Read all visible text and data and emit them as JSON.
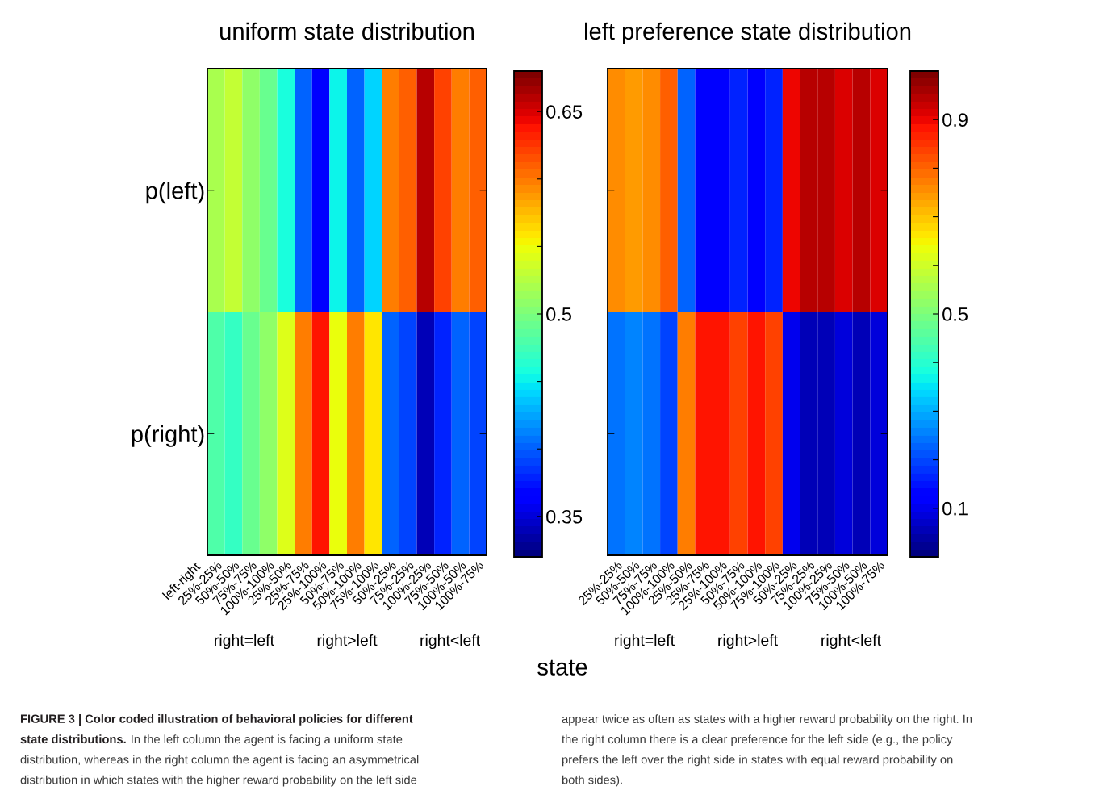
{
  "chart_data": [
    {
      "type": "heatmap",
      "title": "uniform state distribution",
      "categories": [
        "25%-25%",
        "50%-50%",
        "75%-75%",
        "100%-100%",
        "25%-50%",
        "25%-75%",
        "25%-100%",
        "50%-75%",
        "50%-100%",
        "75%-100%",
        "50%-25%",
        "75%-25%",
        "100%-25%",
        "75%-50%",
        "100%-50%",
        "100%-75%"
      ],
      "y_categories": [
        "p(left)",
        "p(right)"
      ],
      "cells": [
        [
          0.52,
          0.53,
          0.51,
          0.49,
          0.46,
          0.4,
          0.36,
          0.45,
          0.4,
          0.44,
          0.6,
          0.61,
          0.66,
          0.62,
          0.6,
          0.61
        ],
        [
          0.48,
          0.47,
          0.49,
          0.51,
          0.54,
          0.6,
          0.64,
          0.55,
          0.6,
          0.56,
          0.4,
          0.39,
          0.34,
          0.38,
          0.4,
          0.39
        ]
      ],
      "clim": [
        0.32,
        0.68
      ],
      "cticks": [
        0.35,
        {
          "value": 0.4,
          "label": null
        },
        {
          "value": 0.45,
          "label": null
        },
        0.5,
        {
          "value": 0.55,
          "label": null
        },
        {
          "value": 0.6,
          "label": null
        },
        0.65
      ],
      "annotations": [
        "left-right",
        "right=left",
        "right>left",
        "right<left",
        "state",
        "FIGURE 3 | Color coded illustration of behavioral policies for different\nstate distributions.",
        "In the left column the agent is facing a uniform state\ndistribution, whereas in the right column the agent is facing an asymmetrical\ndistribution in which states with the higher reward probability on the left side",
        "appear twice as often as states with a higher reward probability on the right. In\nthe right column there is a clear preference for the left side (e.g., the policy\nprefers the left over the right side in states with equal reward probability on\nboth sides)."
      ]
    },
    {
      "type": "heatmap",
      "title": "left preference state distribution",
      "categories": [
        "25%-25%",
        "50%-50%",
        "75%-75%",
        "100%-100%",
        "25%-50%",
        "25%-75%",
        "25%-100%",
        "50%-75%",
        "50%-100%",
        "75%-100%",
        "50%-25%",
        "75%-25%",
        "100%-25%",
        "75%-50%",
        "100%-50%",
        "100%-75%"
      ],
      "y_categories": [
        null,
        null
      ],
      "cells": [
        [
          0.76,
          0.74,
          0.76,
          0.8,
          0.22,
          0.12,
          0.12,
          0.17,
          0.12,
          0.17,
          0.9,
          0.94,
          0.95,
          0.91,
          0.95,
          0.91
        ],
        [
          0.24,
          0.26,
          0.24,
          0.2,
          0.78,
          0.88,
          0.88,
          0.83,
          0.88,
          0.83,
          0.1,
          0.06,
          0.05,
          0.09,
          0.05,
          0.09
        ]
      ],
      "clim": [
        0.0,
        1.0
      ],
      "cticks": [
        0.1,
        {
          "value": 0.2,
          "label": null
        },
        {
          "value": 0.3,
          "label": null
        },
        {
          "value": 0.4,
          "label": null
        },
        0.5,
        {
          "value": 0.6,
          "label": null
        },
        {
          "value": 0.7,
          "label": null
        },
        {
          "value": 0.8,
          "label": null
        },
        0.9
      ],
      "annotations": [
        "right=left",
        "right>left",
        "right<left"
      ]
    }
  ]
}
